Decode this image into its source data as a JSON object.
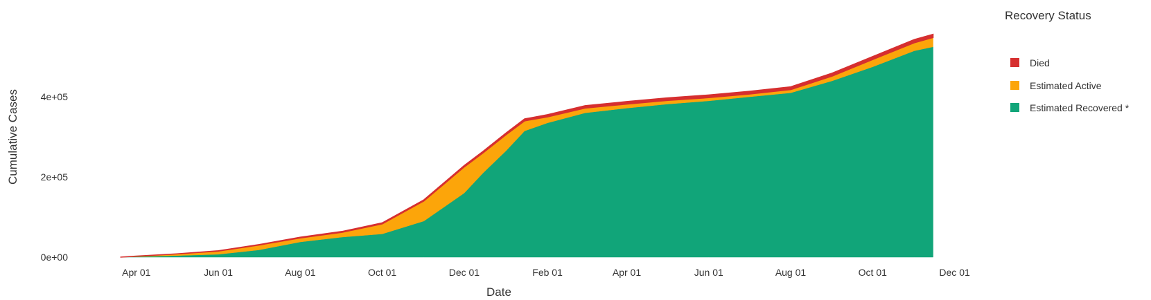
{
  "chart_data": {
    "type": "area",
    "stacked": true,
    "xlabel": "Date",
    "ylabel": "Cumulative Cases",
    "x_ticks": [
      "Apr 01",
      "Jun 01",
      "Aug 01",
      "Oct 01",
      "Dec 01",
      "Feb 01",
      "Apr 01",
      "Jun 01",
      "Aug 01",
      "Oct 01",
      "Dec 01"
    ],
    "x_tick_dates": [
      "2020-04-01",
      "2020-06-01",
      "2020-08-01",
      "2020-10-01",
      "2020-12-01",
      "2021-02-01",
      "2021-04-01",
      "2021-06-01",
      "2021-08-01",
      "2021-10-01",
      "2021-12-01"
    ],
    "xlim": [
      "2020-03-13",
      "2021-12-10"
    ],
    "y_ticks": [
      "0e+00",
      "2e+05",
      "4e+05"
    ],
    "y_tick_values": [
      0,
      200000,
      400000
    ],
    "ylim": [
      0,
      590000
    ],
    "grid": false,
    "legend": {
      "title": "Recovery Status",
      "position": "right",
      "entries": [
        {
          "name": "Died",
          "color": "#d62f2f"
        },
        {
          "name": "Estimated Active",
          "color": "#fca50a"
        },
        {
          "name": "Estimated Recovered *",
          "color": "#11a579"
        }
      ]
    },
    "x": [
      "2020-03-20",
      "2020-04-01",
      "2020-05-01",
      "2020-06-01",
      "2020-07-01",
      "2020-08-01",
      "2020-09-01",
      "2020-10-01",
      "2020-11-01",
      "2020-12-01",
      "2020-12-15",
      "2021-01-01",
      "2021-01-15",
      "2021-02-01",
      "2021-03-01",
      "2021-04-01",
      "2021-05-01",
      "2021-06-01",
      "2021-07-01",
      "2021-08-01",
      "2021-09-01",
      "2021-10-01",
      "2021-11-01",
      "2021-11-15"
    ],
    "series": [
      {
        "name": "Estimated Recovered *",
        "color": "#11a579",
        "values": [
          0,
          1000,
          4000,
          7000,
          18000,
          38000,
          50000,
          58000,
          90000,
          160000,
          210000,
          265000,
          315000,
          335000,
          360000,
          372000,
          382000,
          390000,
          400000,
          410000,
          440000,
          475000,
          515000,
          525000
        ]
      },
      {
        "name": "Estimated Active",
        "color": "#fca50a",
        "values": [
          0,
          1500,
          4000,
          8000,
          12000,
          10000,
          12000,
          25000,
          50000,
          65000,
          50000,
          40000,
          25000,
          15000,
          12000,
          10000,
          9000,
          8000,
          7000,
          8000,
          12000,
          18000,
          20000,
          23000
        ]
      },
      {
        "name": "Died",
        "color": "#d62f2f",
        "values": [
          0,
          50,
          300,
          800,
          1200,
          1800,
          2200,
          2500,
          3000,
          3500,
          4000,
          4500,
          5000,
          5500,
          6000,
          6300,
          6500,
          6700,
          6900,
          7100,
          7400,
          7700,
          8000,
          8200
        ]
      }
    ]
  }
}
